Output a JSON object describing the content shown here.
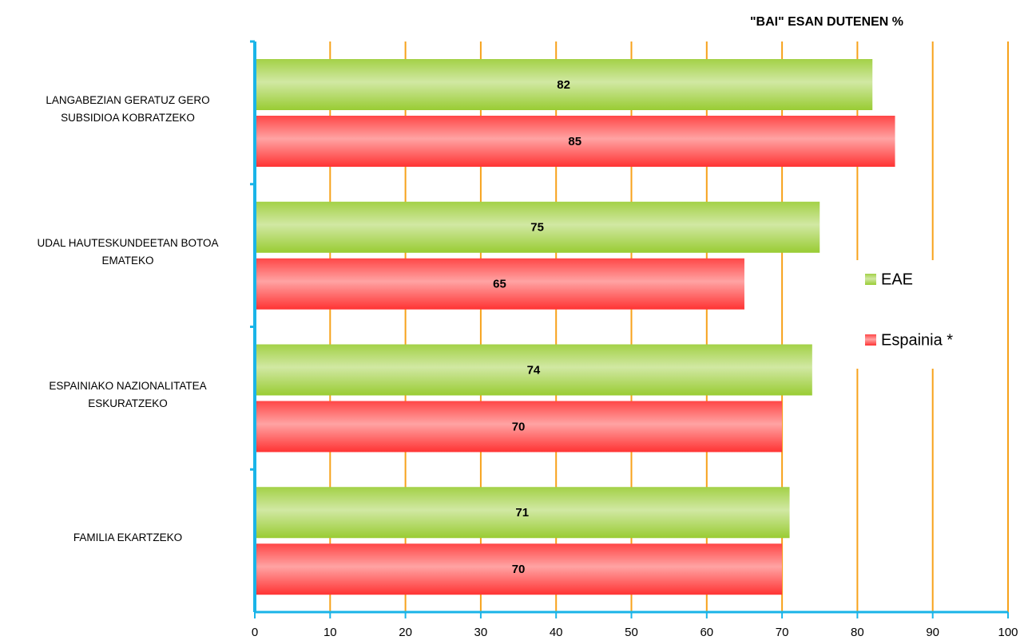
{
  "chart_data": {
    "type": "hbar",
    "title": "\"BAI\" ESAN DUTENEN %",
    "categories": [
      "LANGABEZIAN GERATUZ GERO\nSUBSIDIOA KOBRATZEKO",
      "UDAL HAUTESKUNDEETAN BOTOA\nEMATEKO",
      "ESPAINIAKO NAZIONALITATEA\nESKURATZEKO",
      "FAMILIA EKARTZEKO"
    ],
    "series": [
      {
        "name": "EAE",
        "color": "#99cc33",
        "values": [
          82,
          75,
          74,
          71
        ]
      },
      {
        "name": "Espainia *",
        "color": "#ff3333",
        "values": [
          85,
          65,
          70,
          70
        ]
      }
    ],
    "xlim": [
      0,
      100
    ],
    "xticks": [
      0,
      10,
      20,
      30,
      40,
      50,
      60,
      70,
      80,
      90,
      100
    ],
    "grid": true,
    "legend": "right"
  }
}
